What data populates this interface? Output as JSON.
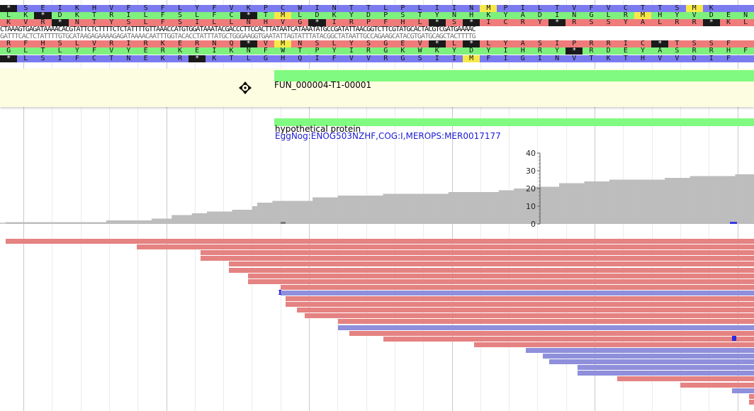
{
  "sequence": {
    "frames": [
      {
        "name": "frame-plus-3",
        "color": "blue",
        "text": "*SEIKHVFSFLYFVKPCWINTTLPLIINMPILTVFVCTTSMK"
      },
      {
        "name": "frame-plus-2",
        "color": "green",
        "text": "LK*DKTRILFSLFC*TMLDKYDPSTYNHKYADINGLRMHYVDEN"
      },
      {
        "name": "frame-plus-1",
        "color": "red",
        "text": "KVR*NTYSLFSILLNHVG*IRPFHL*S*ICRY*RSSYALRR*KL"
      },
      {
        "name": "dna-forward",
        "color": "dna-fwd",
        "text": "CTAAAGTGAGATAAAACACGTATTCTCTTTTCTCTATTTTGTTAAACCATGTGGATAAATACGACCCTTCCACTTATAATCATAAATATGCCGATATTAACGGTCTTCGTATGCACTACGTCGATGAAAAC"
      },
      {
        "name": "dna-reverse",
        "color": "dna-rev",
        "text": "GATTTCACTCTATTTTGTGCATAAGAGAAAAGAGATAAAACAATTTGGTACACCTATTTATGCTGGGAAGGTGAATATTAGTATTTATACGGCTATAATTGCCAGAAGCATACGTGATGCAGCTACTTTTG"
      },
      {
        "name": "frame-minus-1",
        "color": "red",
        "text": "RFHSLVRIRKERNQ*VMNSLYSGEV*L*LYASIPRRIC*TSSF"
      },
      {
        "name": "frame-minus-2",
        "color": "green",
        "text": "GLTLYFVYERKEIKNFWTPYIRGKWKYDYIHRY*RDEYASRRHF"
      },
      {
        "name": "frame-minus-3",
        "color": "blue",
        "text": "*LSIFCTNEKR*KTLGHQIFVVRGSIIMFIGINVTKTHVVDIF"
      }
    ]
  },
  "gene_track": {
    "feature_name": "FUN_000004-T1-00001",
    "hover_tool": "move-icon"
  },
  "annotation_track": {
    "name": "hypothetical protein",
    "description": "EggNog:ENOG503NZHF,COG:I,MEROPS:MER0017177"
  },
  "coverage": {
    "axis_ticks": [
      "0",
      "10",
      "20",
      "30",
      "40"
    ],
    "y_max": 40,
    "values": [
      1,
      1,
      1,
      1,
      1,
      1,
      1,
      1,
      1,
      1,
      1,
      1,
      1,
      1,
      1,
      1,
      1,
      1,
      1,
      1,
      2,
      2,
      2,
      2,
      2,
      2,
      2,
      2,
      2,
      3,
      3,
      3,
      3,
      5,
      5,
      5,
      5,
      6,
      6,
      6,
      7,
      7,
      7,
      7,
      7,
      8,
      8,
      8,
      8,
      10,
      12,
      12,
      12,
      13,
      13,
      13,
      13,
      13,
      13,
      13,
      13,
      15,
      15,
      15,
      15,
      15,
      16,
      16,
      16,
      16,
      16,
      16,
      16,
      16,
      16,
      17,
      17,
      17,
      17,
      17,
      17,
      17,
      17,
      17,
      17,
      17,
      17,
      17,
      18,
      18,
      18,
      18,
      18,
      18,
      18,
      18,
      18,
      18,
      19,
      19,
      19,
      20,
      20,
      20,
      20,
      21,
      21,
      21,
      21,
      21,
      23,
      23,
      23,
      23,
      23,
      24,
      24,
      24,
      24,
      24,
      25,
      25,
      25,
      25,
      25,
      25,
      25,
      25,
      25,
      25,
      25,
      26,
      26,
      26,
      26,
      26,
      27,
      27,
      27,
      27,
      27,
      27,
      27,
      27,
      27,
      28,
      28,
      28,
      28
    ]
  },
  "colors": {
    "forward_read": "#e58282",
    "reverse_read": "#8f8fdc",
    "coverage": "#bdbdbd",
    "feature": "#80fa80",
    "mismatch": "#2a2ae0"
  }
}
